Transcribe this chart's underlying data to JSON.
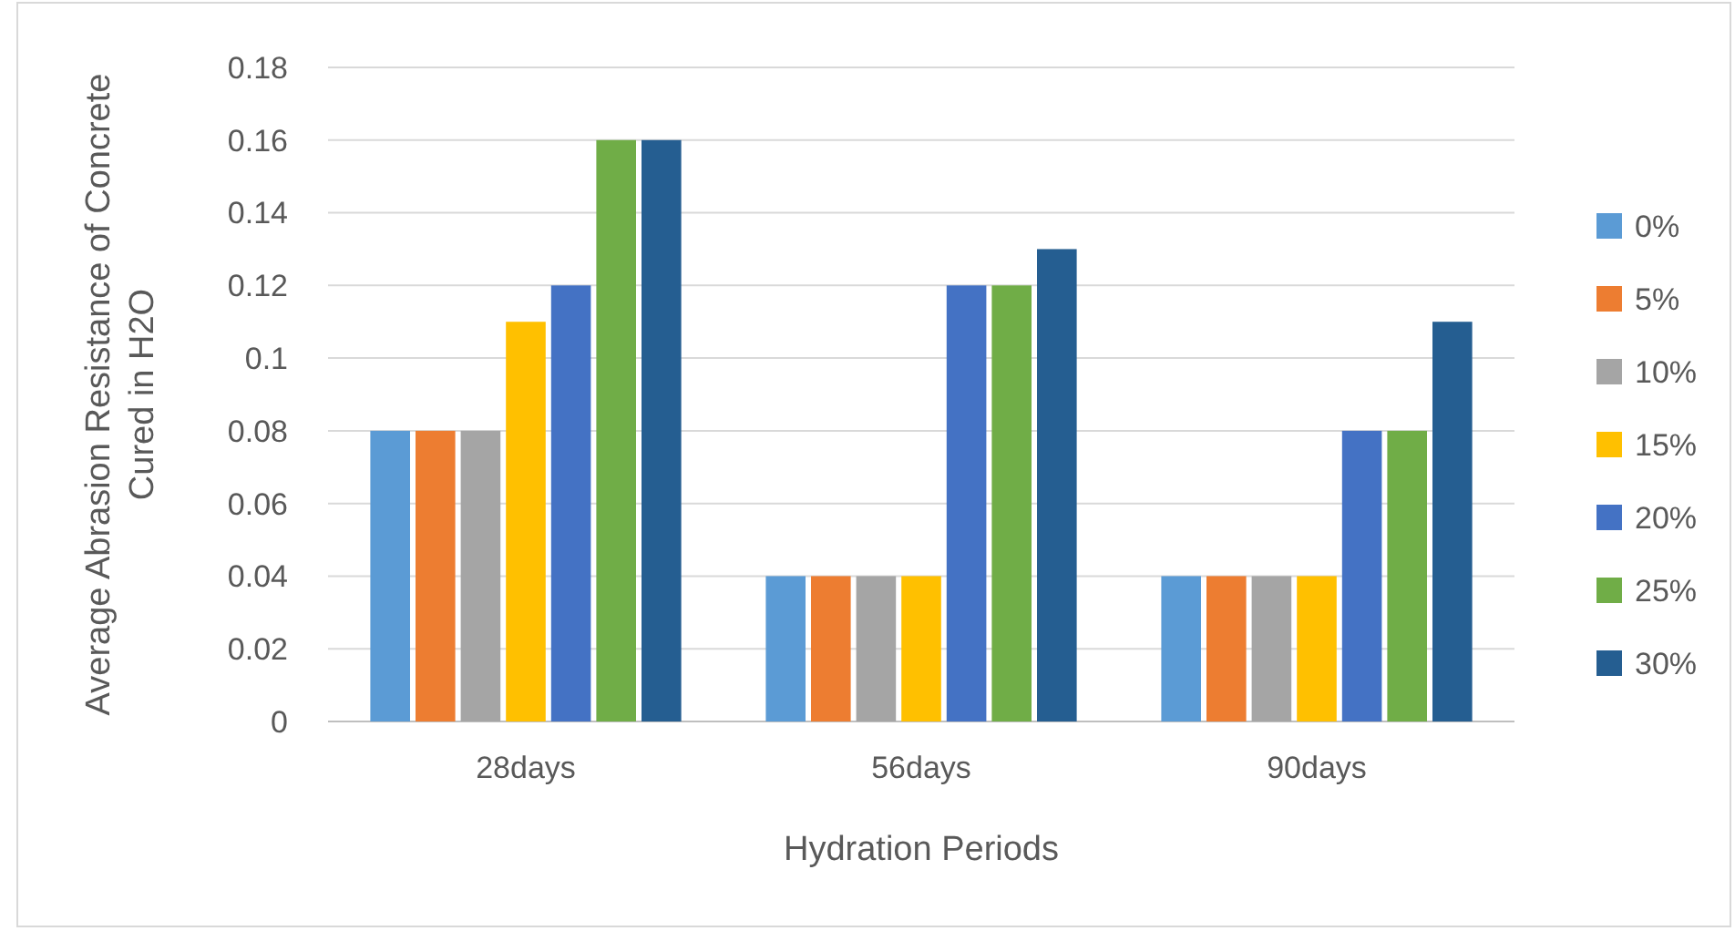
{
  "chart_data": {
    "type": "bar",
    "xlabel": "Hydration Periods",
    "ylabel": "Average Abrasion Resistance of Concrete Cured in H2O",
    "categories": [
      "28days",
      "56days",
      "90days"
    ],
    "series": [
      {
        "name": "0%",
        "color": "#5b9bd5",
        "values": [
          0.08,
          0.04,
          0.04
        ]
      },
      {
        "name": "5%",
        "color": "#ed7d31",
        "values": [
          0.08,
          0.04,
          0.04
        ]
      },
      {
        "name": "10%",
        "color": "#a5a5a5",
        "values": [
          0.08,
          0.04,
          0.04
        ]
      },
      {
        "name": "15%",
        "color": "#ffc000",
        "values": [
          0.11,
          0.04,
          0.04
        ]
      },
      {
        "name": "20%",
        "color": "#4472c4",
        "values": [
          0.12,
          0.12,
          0.08
        ]
      },
      {
        "name": "25%",
        "color": "#70ad47",
        "values": [
          0.16,
          0.12,
          0.08
        ]
      },
      {
        "name": "30%",
        "color": "#255e91",
        "values": [
          0.16,
          0.13,
          0.11
        ]
      }
    ],
    "ylim": [
      0,
      0.18
    ],
    "yticks": [
      0,
      0.02,
      0.04,
      0.06,
      0.08,
      {
        "value": 0.1,
        "label": "0.1"
      },
      0.12,
      0.14,
      0.16,
      0.18
    ],
    "grid": "y",
    "legend": "right"
  }
}
